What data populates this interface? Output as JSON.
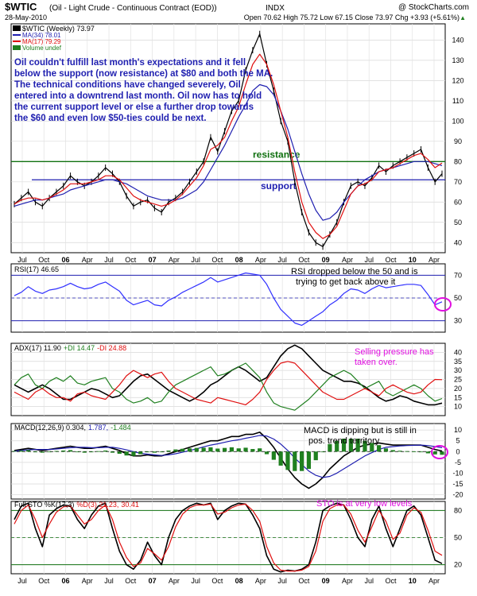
{
  "header": {
    "symbol": "$WTIC",
    "name": "(Oil - Light Crude - Continuous Contract (EOD))",
    "exchange": "INDX",
    "watermark": "@ StockCharts.com",
    "date": "28-May-2010",
    "quote": "Open 70.62  High 75.72  Low 67.15  Close 73.97  Chg +3.93 (+5.61%)",
    "quote_arrow": "▲"
  },
  "colors": {
    "price": "#000000",
    "ma34": "#1f1fb0",
    "ma17": "#e01010",
    "volume": "#208020",
    "resistance": "#107010",
    "support": "#1f1fb0",
    "rsi": "#3030ff",
    "adx": "#000000",
    "plus_di": "#208020",
    "minus_di": "#e01010",
    "macd": "#000000",
    "signal": "#1f1fb0",
    "hist": "#208020",
    "k": "#000000",
    "d": "#e01010",
    "annot_blue": "#1f1fb0",
    "annot_pink": "#e010e0",
    "panel_bg": "#ffffff",
    "outer_bg": "#eeeef8"
  },
  "panels": {
    "price": {
      "legend": [
        {
          "text": "$WTIC (Weekly) 73.97",
          "color": "#000000",
          "key": "price"
        },
        {
          "text": "MA(34) 78.01",
          "color": "#1f1fb0",
          "key": "ma34"
        },
        {
          "text": "MA(17) 79.29",
          "color": "#e01010",
          "key": "ma17"
        },
        {
          "text": "Volume undef",
          "color": "#208020",
          "key": "volume"
        }
      ],
      "annotation": "Oil couldn't fulfill last month's expectations and it fell below the support (now resistance) at $80 and both the MA. The technical conditions have changed severely, Oil entered into a downtrend last month. Oil now has to hold the current support level or else a further drop towards the $60 and even low $50-ties could be next.",
      "resistance_label": "resistance",
      "support_label": "support"
    },
    "rsi": {
      "legend": "RSI(17) 46.65",
      "annotation_1": "RSI dropped below the 50 and is",
      "annotation_2": "trying to get back above it"
    },
    "adx": {
      "legend_adx": "ADX(17) 11.90",
      "legend_plus": "+DI 14.47",
      "legend_minus": "-DI 24.88",
      "annotation_1": "Selling pressure has",
      "annotation_2": "taken over."
    },
    "macd": {
      "legend_macd": "MACD(12,26,9) 0.304,",
      "legend_signal": "1.787,",
      "legend_hist": "-1.484",
      "annotation_1": "MACD is dipping but is still in",
      "annotation_2": "pos. trend territory."
    },
    "sto": {
      "legend_k": "Full STO %K(17,3)",
      "legend_d": "%D(3) 21.23,",
      "legend_d_val": "30.41",
      "annotation": "STO is at very low levels"
    }
  },
  "chart_data": [
    {
      "type": "line",
      "panel": "price",
      "x_ticks": [
        "Jul",
        "Oct",
        "06",
        "Apr",
        "Jul",
        "Oct",
        "07",
        "Apr",
        "Jul",
        "Oct",
        "08",
        "Apr",
        "Jul",
        "Oct",
        "09",
        "Apr",
        "Jul",
        "Oct",
        "10",
        "Apr"
      ],
      "ylim": [
        35,
        148
      ],
      "y_ticks": [
        40,
        50,
        60,
        70,
        80,
        90,
        100,
        110,
        120,
        130,
        140
      ],
      "resistance": 80,
      "support": 71,
      "series": [
        {
          "name": "$WTIC (Weekly)",
          "key": "price",
          "values": [
            59,
            62,
            65,
            60,
            58,
            62,
            65,
            68,
            73,
            70,
            68,
            70,
            73,
            77,
            74,
            70,
            63,
            58,
            60,
            61,
            57,
            55,
            60,
            62,
            65,
            70,
            75,
            80,
            92,
            85,
            95,
            105,
            110,
            125,
            135,
            143,
            128,
            115,
            100,
            90,
            70,
            55,
            45,
            40,
            38,
            44,
            50,
            60,
            68,
            70,
            68,
            72,
            78,
            75,
            78,
            80,
            82,
            84,
            86,
            77,
            70,
            73.97
          ]
        },
        {
          "name": "MA(34)",
          "key": "ma34",
          "values": [
            58,
            59,
            60,
            61,
            61,
            62,
            63,
            64,
            66,
            67,
            68,
            69,
            70,
            71,
            71,
            70,
            69,
            67,
            65,
            63,
            62,
            61,
            61,
            61,
            62,
            64,
            66,
            70,
            76,
            82,
            88,
            95,
            102,
            108,
            115,
            118,
            117,
            113,
            105,
            96,
            85,
            74,
            64,
            56,
            51,
            52,
            55,
            60,
            64,
            68,
            71,
            73,
            75,
            76,
            77,
            78,
            79,
            80,
            80,
            80,
            79,
            78.01
          ]
        },
        {
          "name": "MA(17)",
          "key": "ma17",
          "values": [
            59,
            61,
            62,
            62,
            61,
            62,
            64,
            66,
            69,
            69,
            69,
            70,
            71,
            73,
            73,
            71,
            67,
            63,
            61,
            60,
            59,
            58,
            59,
            61,
            64,
            68,
            72,
            78,
            86,
            88,
            92,
            100,
            107,
            118,
            128,
            133,
            128,
            118,
            105,
            92,
            75,
            60,
            50,
            45,
            42,
            44,
            48,
            56,
            64,
            68,
            69,
            71,
            75,
            76,
            77,
            79,
            81,
            83,
            84,
            81,
            77,
            79.29
          ]
        }
      ]
    },
    {
      "type": "line",
      "panel": "rsi",
      "ylim": [
        20,
        80
      ],
      "y_ticks": [
        30,
        50,
        70
      ],
      "series": [
        {
          "name": "RSI(17)",
          "key": "rsi",
          "values": [
            52,
            55,
            60,
            56,
            54,
            57,
            58,
            60,
            63,
            60,
            58,
            59,
            62,
            64,
            60,
            56,
            48,
            44,
            46,
            48,
            44,
            43,
            48,
            51,
            55,
            58,
            61,
            64,
            68,
            64,
            66,
            68,
            70,
            72,
            71,
            70,
            62,
            50,
            40,
            34,
            28,
            26,
            30,
            34,
            38,
            44,
            48,
            54,
            58,
            57,
            54,
            58,
            61,
            59,
            60,
            61,
            62,
            62,
            61,
            53,
            44,
            46.65
          ]
        }
      ]
    },
    {
      "type": "line",
      "panel": "adx",
      "ylim": [
        5,
        45
      ],
      "y_ticks": [
        10,
        15,
        20,
        25,
        30,
        35,
        40
      ],
      "series": [
        {
          "name": "ADX(17)",
          "key": "adx",
          "values": [
            22,
            20,
            18,
            20,
            22,
            20,
            17,
            14,
            14,
            16,
            18,
            20,
            19,
            17,
            15,
            16,
            20,
            24,
            27,
            28,
            25,
            22,
            19,
            17,
            15,
            13,
            15,
            18,
            22,
            24,
            27,
            30,
            32,
            30,
            27,
            24,
            26,
            32,
            38,
            42,
            44,
            42,
            38,
            34,
            30,
            28,
            26,
            24,
            24,
            23,
            21,
            18,
            15,
            13,
            14,
            16,
            15,
            13,
            12,
            11,
            11,
            11.9
          ]
        },
        {
          "name": "+DI",
          "key": "plus_di",
          "values": [
            22,
            26,
            28,
            22,
            20,
            24,
            26,
            24,
            27,
            23,
            22,
            24,
            25,
            26,
            20,
            18,
            14,
            12,
            13,
            15,
            12,
            13,
            18,
            22,
            24,
            26,
            28,
            30,
            32,
            27,
            28,
            30,
            32,
            34,
            30,
            26,
            18,
            12,
            10,
            9,
            8,
            11,
            14,
            18,
            22,
            26,
            28,
            30,
            28,
            24,
            20,
            22,
            24,
            18,
            16,
            18,
            20,
            22,
            20,
            16,
            13,
            14.47
          ]
        },
        {
          "name": "-DI",
          "key": "minus_di",
          "values": [
            18,
            16,
            14,
            18,
            20,
            17,
            15,
            15,
            13,
            17,
            18,
            16,
            15,
            14,
            18,
            22,
            27,
            30,
            28,
            26,
            28,
            29,
            24,
            20,
            18,
            16,
            14,
            13,
            12,
            15,
            14,
            13,
            12,
            11,
            14,
            18,
            25,
            30,
            34,
            35,
            34,
            30,
            26,
            22,
            18,
            16,
            14,
            14,
            16,
            18,
            20,
            18,
            16,
            20,
            22,
            20,
            18,
            17,
            18,
            22,
            25,
            24.88
          ]
        }
      ]
    },
    {
      "type": "bar",
      "panel": "macd",
      "ylim": [
        -22,
        13
      ],
      "y_ticks": [
        -20,
        -15,
        -10,
        -5,
        0,
        5,
        10
      ],
      "series": [
        {
          "name": "MACD(12,26,9)",
          "key": "macd",
          "values": [
            0.5,
            1,
            1.5,
            1,
            0.5,
            1,
            1.5,
            2,
            2.5,
            2,
            1.5,
            1.5,
            2,
            2.5,
            1.5,
            0.5,
            -1,
            -2,
            -2,
            -1.5,
            -2,
            -2,
            -1,
            0,
            1,
            2,
            3,
            4,
            5,
            5,
            6,
            7,
            7,
            8,
            8,
            9,
            6,
            2,
            -3,
            -8,
            -12,
            -15,
            -17,
            -15,
            -12,
            -8,
            -5,
            -2,
            0,
            2,
            3,
            3.5,
            4,
            3.5,
            3,
            3,
            3,
            3,
            3,
            2,
            1,
            0.304
          ]
        },
        {
          "name": "Signal",
          "key": "signal",
          "values": [
            0.2,
            0.5,
            0.8,
            1,
            1,
            1,
            1.2,
            1.5,
            1.8,
            2,
            2,
            1.8,
            1.8,
            2,
            2,
            1.5,
            0.8,
            0,
            -0.8,
            -1.2,
            -1.5,
            -1.8,
            -1.5,
            -1,
            -0.3,
            0.5,
            1.3,
            2.2,
            3,
            3.6,
            4.3,
            5,
            5.5,
            6.2,
            6.8,
            7.5,
            7.2,
            5.8,
            3.5,
            0.5,
            -3,
            -6,
            -9,
            -11,
            -12,
            -11.5,
            -10,
            -8,
            -6,
            -4,
            -2,
            -0.5,
            1,
            2,
            2.3,
            2.6,
            2.8,
            2.9,
            3,
            2.8,
            2.3,
            1.787
          ]
        },
        {
          "name": "Histogram",
          "key": "hist",
          "values": [
            0.3,
            0.5,
            0.7,
            0,
            -0.5,
            0,
            0.3,
            0.5,
            0.7,
            0,
            -0.5,
            -0.3,
            0.2,
            0.5,
            -0.5,
            -1,
            -1.8,
            -2,
            -1.2,
            -0.3,
            -0.5,
            -0.2,
            0.5,
            1,
            1.3,
            1.5,
            1.7,
            1.8,
            2,
            1.4,
            1.7,
            2,
            1.5,
            1.8,
            1.2,
            1.5,
            -1.2,
            -3.8,
            -6.5,
            -8.5,
            -9,
            -9,
            -8,
            -4,
            0,
            3.5,
            5,
            6,
            6,
            6,
            5,
            4,
            3,
            1.5,
            0.7,
            0.4,
            0.2,
            0.1,
            0,
            -0.8,
            -1.3,
            -1.484
          ]
        }
      ]
    },
    {
      "type": "line",
      "panel": "sto",
      "x_ticks": [
        "Jul",
        "Oct",
        "06",
        "Apr",
        "Jul",
        "Oct",
        "07",
        "Apr",
        "Jul",
        "Oct",
        "08",
        "Apr",
        "Jul",
        "Oct",
        "09",
        "Apr",
        "Jul",
        "Oct",
        "10",
        "Apr"
      ],
      "ylim": [
        10,
        90
      ],
      "y_ticks": [
        20,
        50,
        80
      ],
      "series": [
        {
          "name": "%K(17,3)",
          "key": "k",
          "values": [
            70,
            85,
            88,
            60,
            40,
            75,
            82,
            86,
            85,
            70,
            60,
            75,
            85,
            88,
            60,
            35,
            20,
            15,
            25,
            45,
            30,
            20,
            50,
            70,
            80,
            85,
            88,
            86,
            88,
            70,
            80,
            85,
            88,
            87,
            75,
            60,
            30,
            15,
            12,
            14,
            13,
            15,
            20,
            45,
            80,
            85,
            88,
            86,
            70,
            50,
            40,
            70,
            85,
            60,
            40,
            60,
            80,
            85,
            75,
            50,
            25,
            21.23
          ]
        },
        {
          "name": "%D(3)",
          "key": "d",
          "values": [
            65,
            80,
            86,
            70,
            50,
            65,
            78,
            84,
            85,
            75,
            65,
            70,
            80,
            86,
            70,
            45,
            28,
            18,
            22,
            38,
            32,
            25,
            40,
            62,
            76,
            83,
            86,
            86,
            87,
            76,
            78,
            83,
            86,
            87,
            80,
            68,
            40,
            22,
            14,
            13,
            13,
            14,
            18,
            35,
            68,
            82,
            86,
            86,
            76,
            58,
            45,
            62,
            80,
            68,
            48,
            55,
            75,
            83,
            78,
            58,
            35,
            30.41
          ]
        }
      ]
    }
  ]
}
